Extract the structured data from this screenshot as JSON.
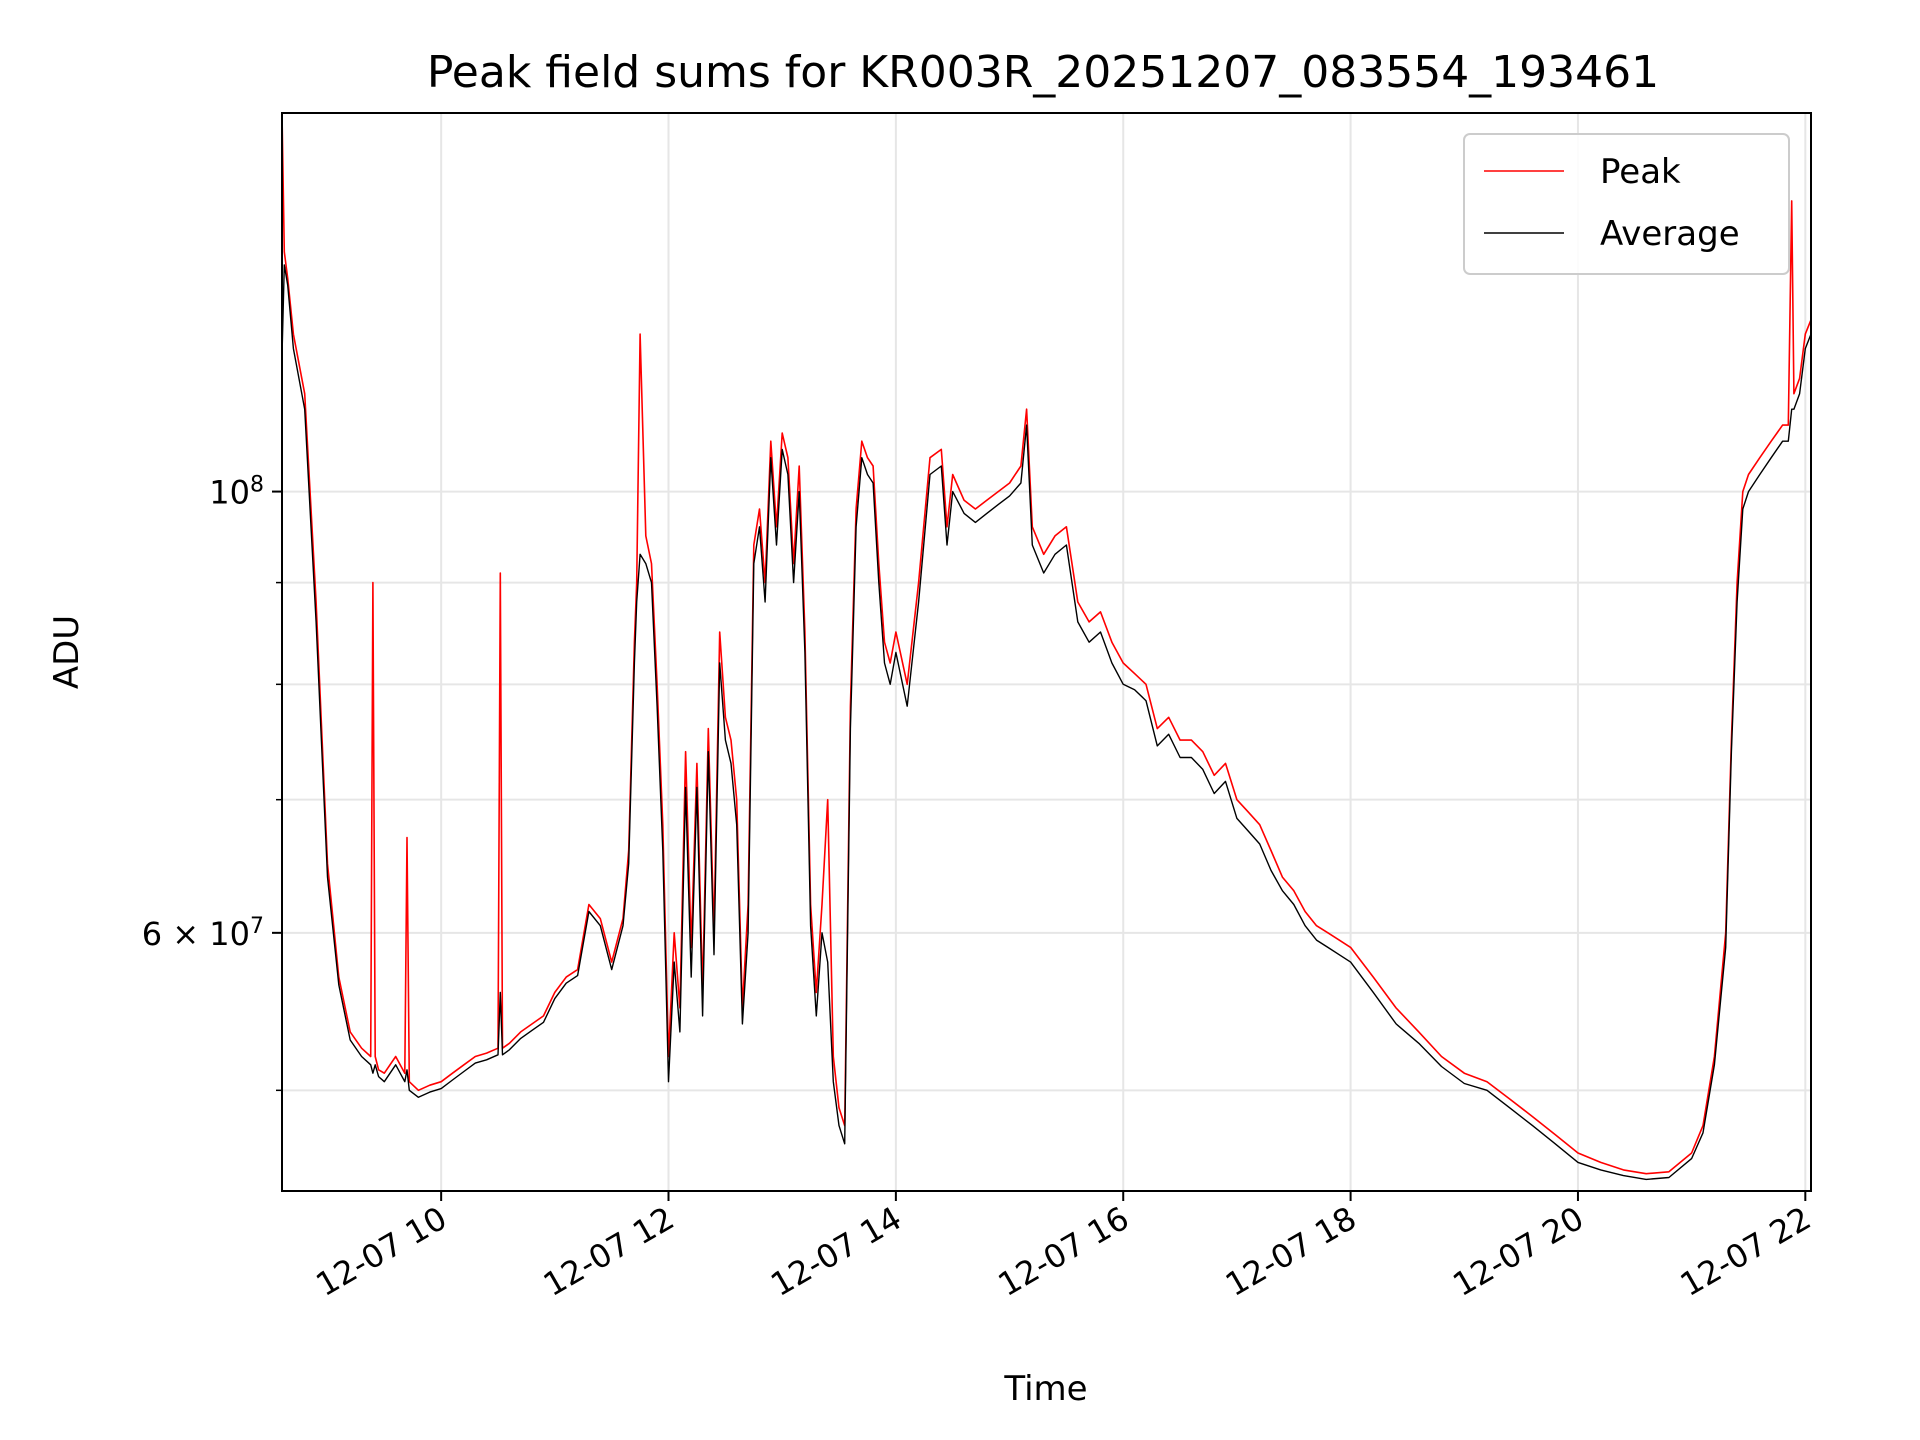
{
  "chart_data": {
    "type": "line",
    "title": "Peak field sums for KR003R_20251207_083554_193461",
    "xlabel": "Time",
    "ylabel": "ADU",
    "yscale": "log",
    "xlim_hours": [
      8.6,
      22.05
    ],
    "ylim": [
      44500000,
      155000000
    ],
    "grid": true,
    "legend_position": "top-right",
    "x_ticks": [
      {
        "hour": 10,
        "label": "12-07 10"
      },
      {
        "hour": 12,
        "label": "12-07 12"
      },
      {
        "hour": 14,
        "label": "12-07 14"
      },
      {
        "hour": 16,
        "label": "12-07 16"
      },
      {
        "hour": 18,
        "label": "12-07 18"
      },
      {
        "hour": 20,
        "label": "12-07 20"
      },
      {
        "hour": 22,
        "label": "12-07 22"
      }
    ],
    "y_major_ticks": [
      {
        "value": 100000000,
        "base": "10",
        "exp": "8"
      },
      {
        "value": 60000000,
        "mant": "6",
        "times": "×",
        "base": "10",
        "exp": "7"
      }
    ],
    "y_minor_gridlines": [
      50000000,
      70000000,
      80000000,
      90000000
    ],
    "series": [
      {
        "name": "Peak",
        "color": "#ff0000",
        "x_hours": [
          8.6,
          8.62,
          8.65,
          8.7,
          8.8,
          8.9,
          9.0,
          9.1,
          9.2,
          9.3,
          9.38,
          9.4,
          9.42,
          9.45,
          9.5,
          9.6,
          9.68,
          9.7,
          9.72,
          9.8,
          9.9,
          10.0,
          10.1,
          10.2,
          10.3,
          10.4,
          10.5,
          10.52,
          10.54,
          10.6,
          10.7,
          10.8,
          10.9,
          11.0,
          11.1,
          11.2,
          11.3,
          11.4,
          11.5,
          11.6,
          11.65,
          11.7,
          11.72,
          11.75,
          11.8,
          11.85,
          11.9,
          11.95,
          12.0,
          12.05,
          12.1,
          12.15,
          12.2,
          12.25,
          12.3,
          12.35,
          12.4,
          12.45,
          12.5,
          12.55,
          12.6,
          12.65,
          12.7,
          12.75,
          12.8,
          12.85,
          12.9,
          12.95,
          13.0,
          13.05,
          13.1,
          13.15,
          13.2,
          13.25,
          13.3,
          13.35,
          13.4,
          13.45,
          13.5,
          13.55,
          13.6,
          13.65,
          13.7,
          13.75,
          13.8,
          13.85,
          13.9,
          13.95,
          14.0,
          14.1,
          14.2,
          14.3,
          14.4,
          14.45,
          14.5,
          14.6,
          14.7,
          14.8,
          14.9,
          15.0,
          15.1,
          15.15,
          15.2,
          15.3,
          15.4,
          15.5,
          15.6,
          15.7,
          15.8,
          15.9,
          16.0,
          16.1,
          16.2,
          16.3,
          16.4,
          16.5,
          16.6,
          16.7,
          16.8,
          16.9,
          17.0,
          17.1,
          17.2,
          17.3,
          17.4,
          17.5,
          17.6,
          17.7,
          17.8,
          17.9,
          18.0,
          18.2,
          18.4,
          18.6,
          18.8,
          19.0,
          19.2,
          19.4,
          19.6,
          19.8,
          20.0,
          20.2,
          20.4,
          20.6,
          20.8,
          21.0,
          21.1,
          21.2,
          21.3,
          21.35,
          21.4,
          21.45,
          21.5,
          21.6,
          21.7,
          21.8,
          21.85,
          21.88,
          21.9,
          21.95,
          22.0,
          22.05
        ],
        "values": [
          155000000,
          132000000,
          128000000,
          120000000,
          112000000,
          88000000,
          65000000,
          57000000,
          53500000,
          52500000,
          52000000,
          90000000,
          52000000,
          51200000,
          51000000,
          52000000,
          51000000,
          67000000,
          50500000,
          50000000,
          50300000,
          50500000,
          51000000,
          51500000,
          52000000,
          52200000,
          52500000,
          91000000,
          52500000,
          52800000,
          53500000,
          54000000,
          54500000,
          56000000,
          57000000,
          57500000,
          62000000,
          61000000,
          58000000,
          61000000,
          66000000,
          84000000,
          90000000,
          120000000,
          95000000,
          92000000,
          80000000,
          68000000,
          52000000,
          60000000,
          55000000,
          74000000,
          59000000,
          73000000,
          56000000,
          76000000,
          60000000,
          85000000,
          77000000,
          75000000,
          70000000,
          55000000,
          62000000,
          94000000,
          98000000,
          90000000,
          106000000,
          96000000,
          107000000,
          104000000,
          92000000,
          103000000,
          85000000,
          62000000,
          56000000,
          62000000,
          70000000,
          52000000,
          49000000,
          48000000,
          78000000,
          98000000,
          106000000,
          104000000,
          103000000,
          92000000,
          84000000,
          82000000,
          85000000,
          80000000,
          90000000,
          104000000,
          105000000,
          96000000,
          102000000,
          99000000,
          98000000,
          99000000,
          100000000,
          101000000,
          103000000,
          110000000,
          96000000,
          93000000,
          95000000,
          96000000,
          88000000,
          86000000,
          87000000,
          84000000,
          82000000,
          81000000,
          80000000,
          76000000,
          77000000,
          75000000,
          75000000,
          74000000,
          72000000,
          73000000,
          70000000,
          69000000,
          68000000,
          66000000,
          64000000,
          63000000,
          61500000,
          60500000,
          60000000,
          59500000,
          59000000,
          57000000,
          55000000,
          53500000,
          52000000,
          51000000,
          50500000,
          49500000,
          48500000,
          47500000,
          46500000,
          46000000,
          45600000,
          45400000,
          45500000,
          46500000,
          48000000,
          52000000,
          60000000,
          75000000,
          90000000,
          100000000,
          102000000,
          104000000,
          106000000,
          108000000,
          108000000,
          140000000,
          112000000,
          114000000,
          120000000,
          122000000
        ]
      },
      {
        "name": "Average",
        "color": "#000000",
        "x_hours": [
          8.6,
          8.62,
          8.65,
          8.7,
          8.8,
          8.9,
          9.0,
          9.1,
          9.2,
          9.3,
          9.38,
          9.4,
          9.42,
          9.45,
          9.5,
          9.6,
          9.68,
          9.7,
          9.72,
          9.8,
          9.9,
          10.0,
          10.1,
          10.2,
          10.3,
          10.4,
          10.5,
          10.52,
          10.54,
          10.6,
          10.7,
          10.8,
          10.9,
          11.0,
          11.1,
          11.2,
          11.3,
          11.4,
          11.5,
          11.6,
          11.65,
          11.7,
          11.72,
          11.75,
          11.8,
          11.85,
          11.9,
          11.95,
          12.0,
          12.05,
          12.1,
          12.15,
          12.2,
          12.25,
          12.3,
          12.35,
          12.4,
          12.45,
          12.5,
          12.55,
          12.6,
          12.65,
          12.7,
          12.75,
          12.8,
          12.85,
          12.9,
          12.95,
          13.0,
          13.05,
          13.1,
          13.15,
          13.2,
          13.25,
          13.3,
          13.35,
          13.4,
          13.45,
          13.5,
          13.55,
          13.6,
          13.65,
          13.7,
          13.75,
          13.8,
          13.85,
          13.9,
          13.95,
          14.0,
          14.1,
          14.2,
          14.3,
          14.4,
          14.45,
          14.5,
          14.6,
          14.7,
          14.8,
          14.9,
          15.0,
          15.1,
          15.15,
          15.2,
          15.3,
          15.4,
          15.5,
          15.6,
          15.7,
          15.8,
          15.9,
          16.0,
          16.1,
          16.2,
          16.3,
          16.4,
          16.5,
          16.6,
          16.7,
          16.8,
          16.9,
          17.0,
          17.1,
          17.2,
          17.3,
          17.4,
          17.5,
          17.6,
          17.7,
          17.8,
          17.9,
          18.0,
          18.2,
          18.4,
          18.6,
          18.8,
          19.0,
          19.2,
          19.4,
          19.6,
          19.8,
          20.0,
          20.2,
          20.4,
          20.6,
          20.8,
          21.0,
          21.1,
          21.2,
          21.3,
          21.35,
          21.4,
          21.45,
          21.5,
          21.6,
          21.7,
          21.8,
          21.85,
          21.88,
          21.9,
          21.95,
          22.0,
          22.05
        ],
        "values": [
          117000000,
          130000000,
          127000000,
          118000000,
          110000000,
          86000000,
          64000000,
          56500000,
          53000000,
          52000000,
          51500000,
          51000000,
          51500000,
          50800000,
          50500000,
          51500000,
          50500000,
          51200000,
          50000000,
          49600000,
          49900000,
          50100000,
          50600000,
          51100000,
          51600000,
          51800000,
          52100000,
          56000000,
          52100000,
          52400000,
          53100000,
          53600000,
          54100000,
          55600000,
          56600000,
          57100000,
          61500000,
          60500000,
          57500000,
          60500000,
          65000000,
          82000000,
          88000000,
          93000000,
          92000000,
          90000000,
          78000000,
          66000000,
          50500000,
          58000000,
          53500000,
          71000000,
          57000000,
          71000000,
          54500000,
          74000000,
          58500000,
          82000000,
          75000000,
          73000000,
          68000000,
          54000000,
          60000000,
          92000000,
          96000000,
          88000000,
          104000000,
          94000000,
          105000000,
          102000000,
          90000000,
          100000000,
          83000000,
          60500000,
          54500000,
          60000000,
          58000000,
          50500000,
          48000000,
          47000000,
          76000000,
          96000000,
          104000000,
          102000000,
          101000000,
          90000000,
          82000000,
          80000000,
          83000000,
          78000000,
          88000000,
          102000000,
          103000000,
          94000000,
          100000000,
          97500000,
          96500000,
          97500000,
          98500000,
          99500000,
          101000000,
          108000000,
          94000000,
          91000000,
          93000000,
          94000000,
          86000000,
          84000000,
          85000000,
          82000000,
          80000000,
          79500000,
          78500000,
          74500000,
          75500000,
          73500000,
          73500000,
          72500000,
          70500000,
          71500000,
          68500000,
          67500000,
          66500000,
          64500000,
          63000000,
          62000000,
          60500000,
          59500000,
          59000000,
          58500000,
          58000000,
          56000000,
          54000000,
          52800000,
          51400000,
          50400000,
          50000000,
          49000000,
          48000000,
          47000000,
          46000000,
          45600000,
          45300000,
          45100000,
          45200000,
          46200000,
          47600000,
          51500000,
          59000000,
          74000000,
          88000000,
          98000000,
          100000000,
          102000000,
          104000000,
          106000000,
          106000000,
          110000000,
          110000000,
          112000000,
          118000000,
          120000000
        ]
      }
    ]
  }
}
